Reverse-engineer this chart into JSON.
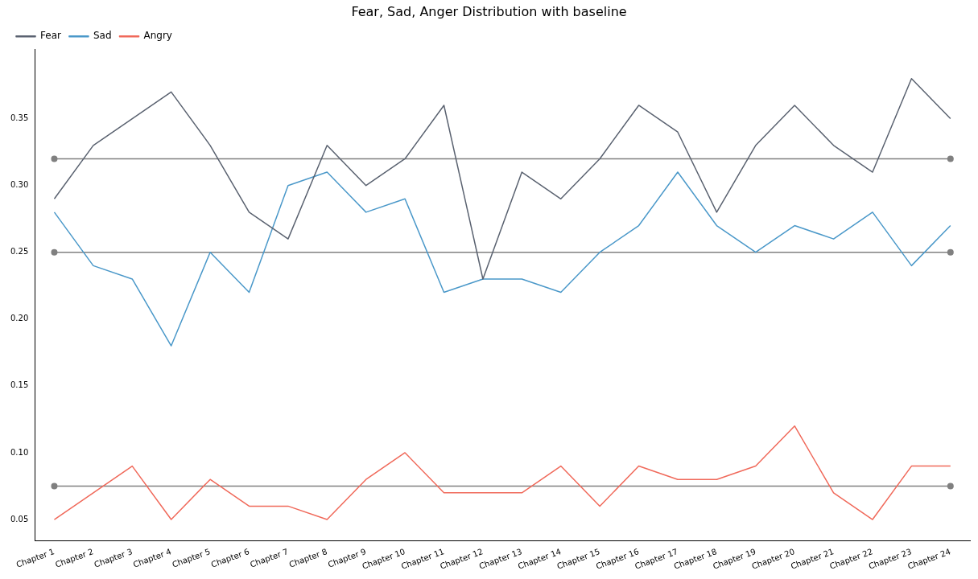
{
  "chart_data": {
    "type": "line",
    "title": "Fear, Sad, Anger Distribution with baseline",
    "categories": [
      "Chapter 1",
      "Chapter 2",
      "Chapter 3",
      "Chapter 4",
      "Chapter 5",
      "Chapter 6",
      "Chapter 7",
      "Chapter 8",
      "Chapter 9",
      "Chapter 10",
      "Chapter 11",
      "Chapter 12",
      "Chapter 13",
      "Chapter 14",
      "Chapter 15",
      "Chapter 16",
      "Chapter 17",
      "Chapter 18",
      "Chapter 19",
      "Chapter 20",
      "Chapter 21",
      "Chapter 22",
      "Chapter 23",
      "Chapter 24"
    ],
    "series": [
      {
        "name": "Fear",
        "color": "#5a6270",
        "values": [
          0.29,
          0.33,
          0.35,
          0.37,
          0.33,
          0.28,
          0.26,
          0.33,
          0.3,
          0.32,
          0.36,
          0.23,
          0.31,
          0.29,
          0.32,
          0.36,
          0.34,
          0.28,
          0.33,
          0.36,
          0.33,
          0.31,
          0.38,
          0.35
        ]
      },
      {
        "name": "Sad",
        "color": "#4a98c9",
        "values": [
          0.28,
          0.24,
          0.23,
          0.18,
          0.25,
          0.22,
          0.3,
          0.31,
          0.28,
          0.29,
          0.22,
          0.23,
          0.23,
          0.22,
          0.25,
          0.27,
          0.31,
          0.27,
          0.25,
          0.27,
          0.26,
          0.28,
          0.24,
          0.27
        ]
      },
      {
        "name": "Angry",
        "color": "#f0695a",
        "values": [
          0.05,
          0.07,
          0.09,
          0.05,
          0.08,
          0.06,
          0.06,
          0.05,
          0.08,
          0.1,
          0.07,
          0.07,
          0.07,
          0.09,
          0.06,
          0.09,
          0.08,
          0.08,
          0.09,
          0.12,
          0.07,
          0.05,
          0.09,
          0.09
        ]
      },
      {
        "color": "#808080",
        "marker": "circle",
        "x": [
          "Chapter 1",
          "Chapter 24"
        ],
        "values": [
          0.32,
          0.32
        ]
      },
      {
        "color": "#808080",
        "marker": "circle",
        "x": [
          "Chapter 1",
          "Chapter 24"
        ],
        "values": [
          0.25,
          0.25
        ]
      },
      {
        "color": "#808080",
        "marker": "circle",
        "x": [
          "Chapter 1",
          "Chapter 24"
        ],
        "values": [
          0.075,
          0.075
        ]
      }
    ],
    "ylim": [
      0.034,
      0.402
    ],
    "yticks": [
      {
        "value": 0.05,
        "label": "0.05"
      },
      {
        "value": 0.1,
        "label": "0.10"
      },
      {
        "value": 0.15,
        "label": "0.15"
      },
      {
        "value": 0.2,
        "label": "0.20"
      },
      {
        "value": 0.25,
        "label": "0.25"
      },
      {
        "value": 0.3,
        "label": "0.30"
      },
      {
        "value": 0.35,
        "label": "0.35"
      }
    ],
    "grid": false,
    "legend": "top left",
    "marker": "none",
    "line_style": "solid"
  }
}
